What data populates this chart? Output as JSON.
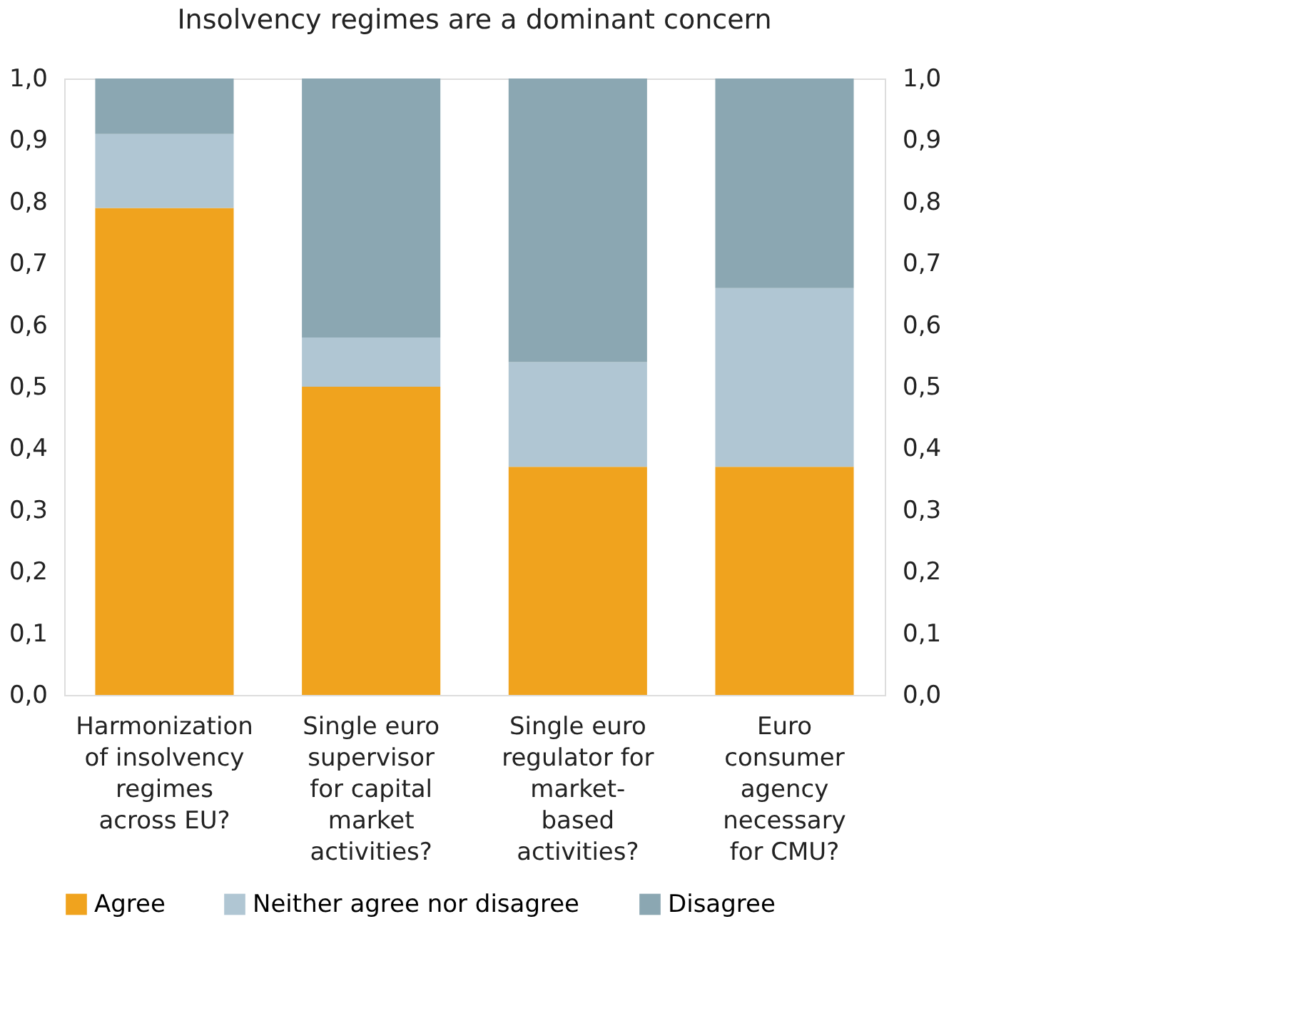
{
  "chart_data": {
    "type": "bar",
    "title": "Insolvency regimes are a dominant concern",
    "stacked": true,
    "categories": [
      "Harmonization\nof insolvency\nregimes\nacross EU?",
      "Single euro\nsupervisor\nfor capital\nmarket\nactivities?",
      "Single euro\nregulator for\nmarket-\nbased\nactivities?",
      "Euro\nconsumer\nagency\nnecessary\nfor CMU?"
    ],
    "series": [
      {
        "name": "Agree",
        "color": "#f0a31e",
        "values": [
          0.79,
          0.5,
          0.37,
          0.37
        ]
      },
      {
        "name": "Neither agree nor disagree",
        "color": "#b0c6d3",
        "values": [
          0.12,
          0.08,
          0.17,
          0.29
        ]
      },
      {
        "name": "Disagree",
        "color": "#8ba7b2",
        "values": [
          0.09,
          0.42,
          0.46,
          0.34
        ]
      }
    ],
    "ylim": [
      0,
      1
    ],
    "yticks": [
      {
        "value": 0,
        "label": "0,0"
      },
      {
        "value": 0.1,
        "label": "0,1"
      },
      {
        "value": 0.2,
        "label": "0,2"
      },
      {
        "value": 0.3,
        "label": "0,3"
      },
      {
        "value": 0.4,
        "label": "0,4"
      },
      {
        "value": 0.5,
        "label": "0,5"
      },
      {
        "value": 0.6,
        "label": "0,6"
      },
      {
        "value": 0.7,
        "label": "0,7"
      },
      {
        "value": 0.8,
        "label": "0,8"
      },
      {
        "value": 0.9,
        "label": "0,9"
      },
      {
        "value": 1,
        "label": "1,0"
      }
    ],
    "y2lim": [
      0,
      1
    ],
    "y2ticks": [
      {
        "value": 0,
        "label": "0,0"
      },
      {
        "value": 0.1,
        "label": "0,1"
      },
      {
        "value": 0.2,
        "label": "0,2"
      },
      {
        "value": 0.3,
        "label": "0,3"
      },
      {
        "value": 0.4,
        "label": "0,4"
      },
      {
        "value": 0.5,
        "label": "0,5"
      },
      {
        "value": 0.6,
        "label": "0,6"
      },
      {
        "value": 0.7,
        "label": "0,7"
      },
      {
        "value": 0.8,
        "label": "0,8"
      },
      {
        "value": 0.9,
        "label": "0,9"
      },
      {
        "value": 1,
        "label": "1,0"
      }
    ],
    "grid": false,
    "legend": "bottom"
  }
}
